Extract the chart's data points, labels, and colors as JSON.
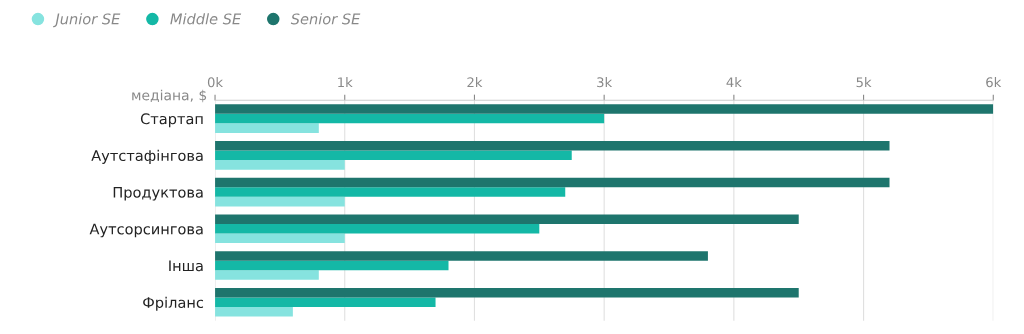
{
  "chart_data": {
    "type": "bar",
    "orientation": "horizontal",
    "xlabel": "медіана, $",
    "categories": [
      "Стартап",
      "Аутстафінгова",
      "Продуктова",
      "Аутсорсингова",
      "Інша",
      "Фріланс"
    ],
    "series": [
      {
        "name": "Junior SE",
        "color": "#86e3df",
        "values": [
          800,
          1000,
          1000,
          1000,
          800,
          600
        ]
      },
      {
        "name": "Middle SE",
        "color": "#14b8a6",
        "values": [
          3000,
          2750,
          2700,
          2500,
          1800,
          1700
        ]
      },
      {
        "name": "Senior SE",
        "color": "#1e756d",
        "values": [
          6000,
          5200,
          5200,
          4500,
          3800,
          4500
        ]
      }
    ],
    "xlim": [
      0,
      6000
    ],
    "xticks": [
      {
        "value": 0,
        "label": "0k"
      },
      {
        "value": 1000,
        "label": "1k"
      },
      {
        "value": 2000,
        "label": "2k"
      },
      {
        "value": 3000,
        "label": "3k"
      },
      {
        "value": 4000,
        "label": "4k"
      },
      {
        "value": 5000,
        "label": "5k"
      },
      {
        "value": 6000,
        "label": "6k"
      }
    ],
    "grid": "x",
    "legend": "top left"
  }
}
